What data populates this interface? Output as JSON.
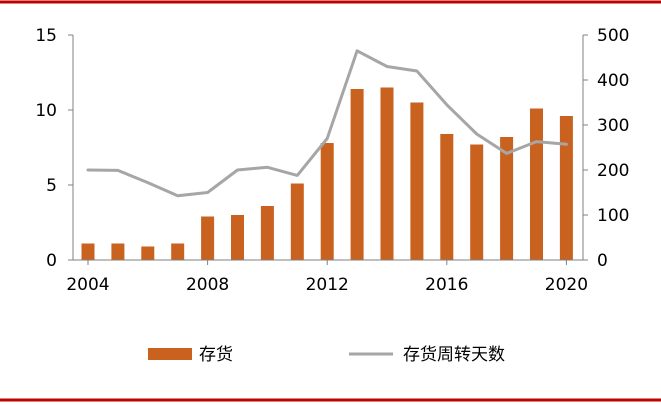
{
  "chart_data": {
    "type": "bar",
    "x": [
      2004,
      2005,
      2006,
      2007,
      2008,
      2009,
      2010,
      2011,
      2012,
      2013,
      2014,
      2015,
      2016,
      2017,
      2018,
      2019,
      2020
    ],
    "x_tick_labels": [
      "2004",
      "2008",
      "2012",
      "2016",
      "2020"
    ],
    "series": [
      {
        "name": "存货",
        "type": "bar",
        "axis": "left",
        "color": "#C9621F",
        "values": [
          1.1,
          1.1,
          0.9,
          1.1,
          2.9,
          3.0,
          3.6,
          5.1,
          7.8,
          11.4,
          11.5,
          10.5,
          8.4,
          7.7,
          8.2,
          10.1,
          9.6
        ]
      },
      {
        "name": "存货周转天数",
        "type": "line",
        "axis": "right",
        "color": "#A6A6A6",
        "values": [
          200,
          199,
          172,
          143,
          150,
          200,
          206,
          188,
          270,
          465,
          430,
          420,
          345,
          280,
          237,
          263,
          257
        ]
      }
    ],
    "y_left": {
      "ylim": [
        0,
        15
      ],
      "ticks": [
        "0",
        "5",
        "10",
        "15"
      ]
    },
    "y_right": {
      "ylim": [
        0,
        500
      ],
      "ticks": [
        "0",
        "100",
        "200",
        "300",
        "400",
        "500"
      ]
    },
    "legend": {
      "placement": "bottom"
    },
    "grid": false,
    "frame_color": "#C00000"
  }
}
